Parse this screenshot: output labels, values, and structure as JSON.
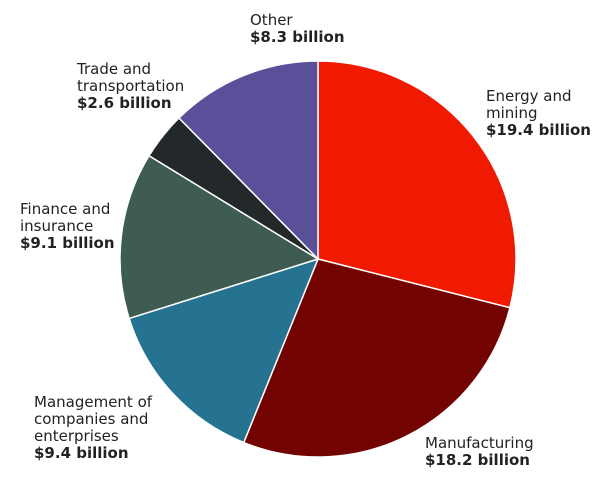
{
  "chart_data": {
    "type": "pie",
    "slices": [
      {
        "label": "Energy and\nmining",
        "value_text": "$19.4 billion",
        "value": 19.4,
        "color": "#ef1a00"
      },
      {
        "label": "Manufacturing",
        "value_text": "$18.2 billion",
        "value": 18.2,
        "color": "#720300"
      },
      {
        "label": "Management of\ncompanies and\nenterprises",
        "value_text": "$9.4 billion",
        "value": 9.4,
        "color": "#257390"
      },
      {
        "label": "Finance and\ninsurance",
        "value_text": "$9.1 billion",
        "value": 9.1,
        "color": "#3f5c53"
      },
      {
        "label": "Trade and\ntransportation",
        "value_text": "$2.6 billion",
        "value": 2.6,
        "color": "#23282b"
      },
      {
        "label": "Other",
        "value_text": "$8.3 billion",
        "value": 8.3,
        "color": "#5b4f9a"
      }
    ],
    "slice_order": "clockwise from top",
    "legend": "none"
  }
}
